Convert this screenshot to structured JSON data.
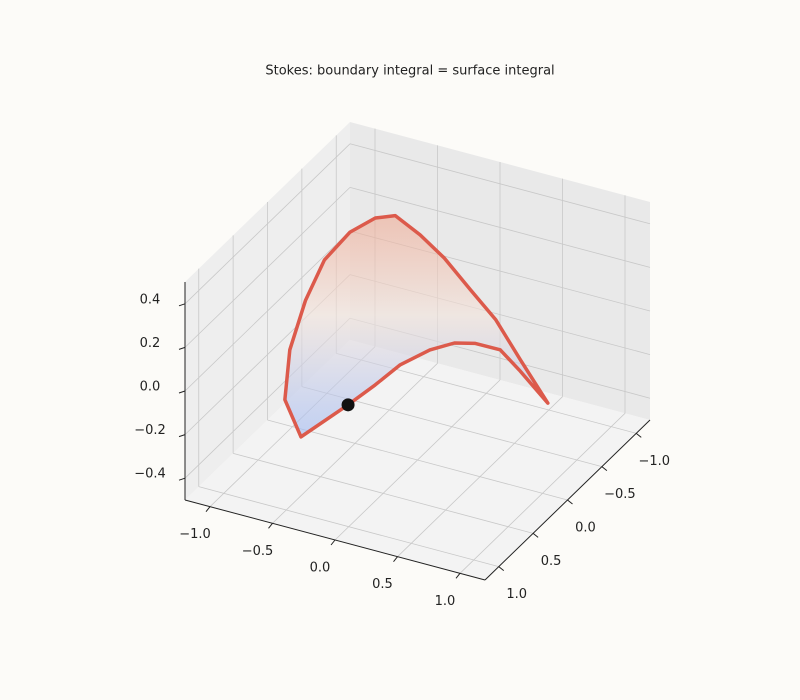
{
  "chart_data": {
    "type": "surface3d",
    "title": "Stokes: boundary integral = surface integral",
    "xlim": [
      -1.2,
      1.2
    ],
    "ylim": [
      -1.2,
      1.2
    ],
    "zlim": [
      -0.5,
      0.5
    ],
    "xticks": [
      {
        "value": -1,
        "label": "−1.0"
      },
      {
        "value": -0.5,
        "label": "−0.5"
      },
      {
        "value": 0,
        "label": "0.0"
      },
      {
        "value": 0.5,
        "label": "0.5"
      },
      {
        "value": 1,
        "label": "1.0"
      }
    ],
    "yticks": [
      {
        "value": -1,
        "label": "−1.0"
      },
      {
        "value": -0.5,
        "label": "−0.5"
      },
      {
        "value": 0,
        "label": "0.0"
      },
      {
        "value": 0.5,
        "label": "0.5"
      },
      {
        "value": 1,
        "label": "1.0"
      }
    ],
    "zticks": [
      {
        "value": -0.4,
        "label": "−0.4"
      },
      {
        "value": -0.2,
        "label": "−0.2"
      },
      {
        "value": 0,
        "label": "0.0"
      },
      {
        "value": 0.2,
        "label": "0.2"
      },
      {
        "value": 0.4,
        "label": "0.4"
      }
    ],
    "grid": true,
    "boundary": {
      "color": "#dc5a4b",
      "x": [
        -0.44,
        -0.74,
        -0.94,
        -0.95,
        -0.89,
        -0.75,
        -0.6,
        -0.42,
        -0.31,
        -0.1,
        0.06,
        0.15,
        0.22,
        0.35,
        0.52,
        0.55,
        0.37,
        0.31,
        0.18,
        0.0,
        -0.16,
        -0.3
      ],
      "y": [
        0.21,
        0.35,
        0.22,
        0.13,
        0.01,
        -0.01,
        -0.11,
        -0.15,
        -0.24,
        -0.22,
        -0.28,
        -0.5,
        -0.74,
        -0.86,
        -0.95,
        -0.48,
        -0.53,
        -0.27,
        -0.21,
        -0.18,
        -0.04,
        0.07
      ],
      "z": [
        -0.25,
        -0.4,
        -0.3,
        -0.1,
        0.1,
        0.3,
        0.42,
        0.5,
        0.5,
        0.45,
        0.35,
        0.15,
        -0.05,
        -0.25,
        -0.45,
        -0.15,
        -0.1,
        0,
        0,
        -0.05,
        -0.1,
        -0.18
      ]
    },
    "point": {
      "color": "#111111",
      "x": -0.44,
      "y": 0.21,
      "z": -0.25
    }
  }
}
